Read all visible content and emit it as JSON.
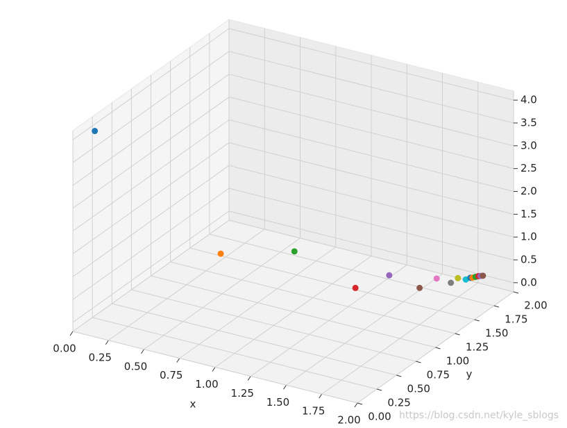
{
  "chart_data": {
    "type": "scatter3d",
    "x_label": "x",
    "y_label": "y",
    "xlim": [
      0,
      2
    ],
    "ylim": [
      0,
      2
    ],
    "zlim": [
      -0.2,
      4.2
    ],
    "xticks": [
      {
        "value": 0,
        "label": "0.00"
      },
      {
        "value": 0.25,
        "label": "0.25"
      },
      {
        "value": 0.5,
        "label": "0.50"
      },
      {
        "value": 0.75,
        "label": "0.75"
      },
      {
        "value": 1,
        "label": "1.00"
      },
      {
        "value": 1.25,
        "label": "1.25"
      },
      {
        "value": 1.5,
        "label": "1.50"
      },
      {
        "value": 1.75,
        "label": "1.75"
      },
      {
        "value": 2,
        "label": "2.00"
      }
    ],
    "yticks": [
      {
        "value": 0,
        "label": "0.00"
      },
      {
        "value": 0.25,
        "label": "0.25"
      },
      {
        "value": 0.5,
        "label": "0.50"
      },
      {
        "value": 0.75,
        "label": "0.75"
      },
      {
        "value": 1,
        "label": "1.00"
      },
      {
        "value": 1.25,
        "label": "1.25"
      },
      {
        "value": 1.5,
        "label": "1.50"
      },
      {
        "value": 1.75,
        "label": "1.75"
      },
      {
        "value": 2,
        "label": "2.00"
      }
    ],
    "zticks": [
      {
        "value": 0,
        "label": "0.0"
      },
      {
        "value": 0.5,
        "label": "0.5"
      },
      {
        "value": 1,
        "label": "1.0"
      },
      {
        "value": 1.5,
        "label": "1.5"
      },
      {
        "value": 2,
        "label": "2.0"
      },
      {
        "value": 2.5,
        "label": "2.5"
      },
      {
        "value": 3,
        "label": "3.0"
      },
      {
        "value": 3.5,
        "label": "3.5"
      },
      {
        "value": 4,
        "label": "4.0"
      }
    ],
    "grid": true,
    "points": {
      "x": [
        0.05,
        0.6,
        0.8,
        1.3,
        1.34,
        1.57,
        1.58,
        1.68,
        1.68,
        1.73,
        1.74,
        1.75,
        1.76,
        1.77,
        1.78,
        1.79
      ],
      "y": [
        0.19,
        0.8,
        1.38,
        1.25,
        1.61,
        1.58,
        1.78,
        1.78,
        1.87,
        1.88,
        1.92,
        1.93,
        1.95,
        1.97,
        1.98,
        1.99
      ],
      "z": [
        4,
        1,
        0.5,
        0.25,
        0.12,
        0.06,
        0.03,
        0.015,
        0.008,
        0.004,
        0.002,
        0.001,
        0.0005,
        0.0002,
        0.0001,
        5e-05
      ],
      "colors": [
        "#1f77b4",
        "#ff7f0e",
        "#2ca02c",
        "#d62728",
        "#9467bd",
        "#8c564b",
        "#e377c2",
        "#7f7f7f",
        "#bcbd22",
        "#17becf",
        "#1f77b4",
        "#ff7f0e",
        "#2ca02c",
        "#d62728",
        "#9467bd",
        "#8c564b"
      ]
    },
    "watermark": "https://blog.csdn.net/kyle_sblogs"
  }
}
